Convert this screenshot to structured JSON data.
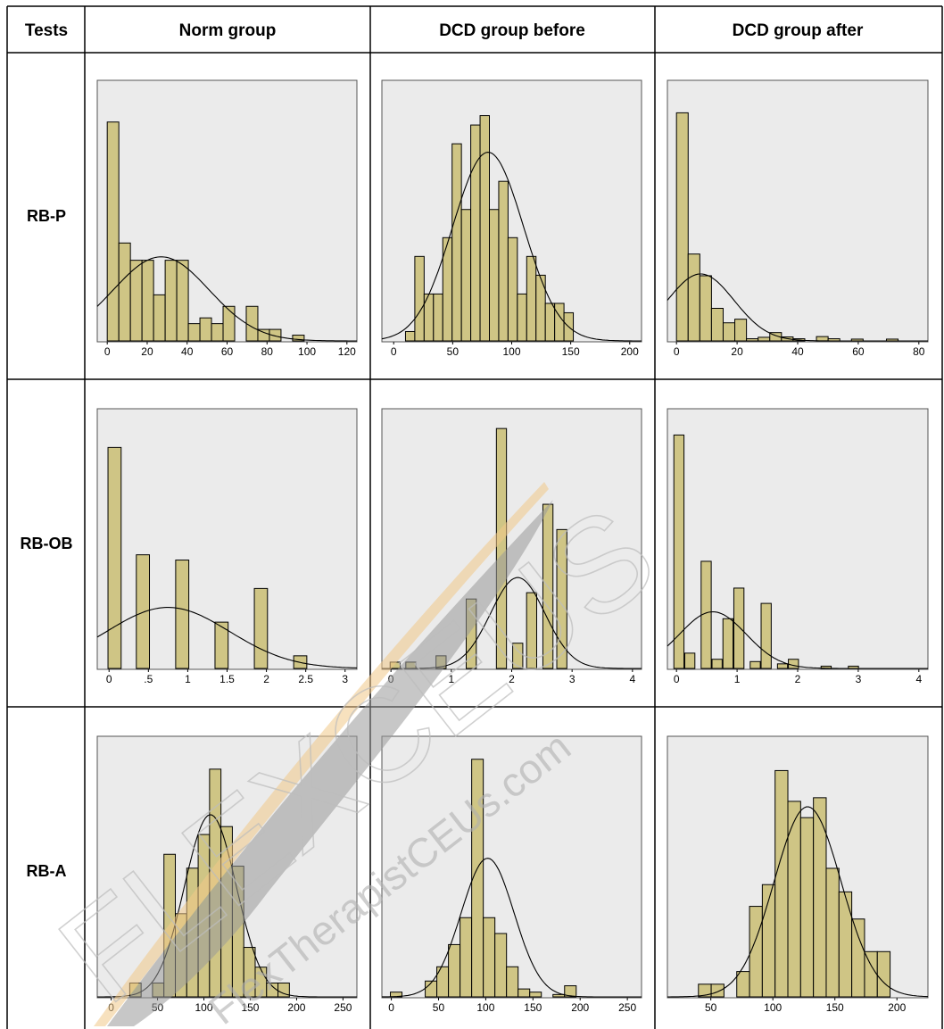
{
  "table": {
    "header_tests": "Tests",
    "columns": [
      "Norm group",
      "DCD group before",
      "DCD group after"
    ],
    "rows": [
      "RB-P",
      "RB-OB",
      "RB-A"
    ]
  },
  "watermark": {
    "big": "FLEXCEUS",
    "small": "FlexTherapistCEUs.com"
  },
  "chart_data": [
    {
      "type": "bar",
      "row": "RB-P",
      "column": "Norm group",
      "xlim": [
        -5,
        125
      ],
      "ticks": [
        0,
        20,
        40,
        60,
        80,
        100,
        120
      ],
      "tick_labels": [
        "0",
        "20",
        "40",
        "60",
        "80",
        "100",
        "120"
      ],
      "bin_start": 0,
      "bin_width": 5.8,
      "values": [
        38,
        17,
        14,
        14,
        8,
        14,
        14,
        3,
        4,
        3,
        6,
        0,
        6,
        2,
        2,
        0,
        1
      ],
      "curve": {
        "mean": 27,
        "sd": 24,
        "peak": 14.6
      },
      "ymax": 44
    },
    {
      "type": "bar",
      "row": "RB-P",
      "column": "DCD group before",
      "xlim": [
        -10,
        210
      ],
      "ticks": [
        0,
        50,
        100,
        150,
        200
      ],
      "tick_labels": [
        "0",
        "50",
        "100",
        "150",
        "200"
      ],
      "bin_start": 10,
      "bin_width": 7.9,
      "values": [
        1,
        9,
        5,
        5,
        11,
        21,
        14,
        23,
        24,
        14,
        17,
        11,
        5,
        9,
        7,
        4,
        4,
        3
      ],
      "curve": {
        "mean": 80,
        "sd": 30,
        "peak": 20.1
      },
      "ymax": 27
    },
    {
      "type": "bar",
      "row": "RB-P",
      "column": "DCD group after",
      "xlim": [
        -3,
        83
      ],
      "ticks": [
        0,
        20,
        40,
        60,
        80
      ],
      "tick_labels": [
        "0",
        "20",
        "40",
        "60",
        "80"
      ],
      "bin_start": 0,
      "bin_width": 3.85,
      "values": [
        63,
        24,
        18,
        9,
        5,
        6,
        0.6,
        1,
        2.3,
        1.1,
        0.6,
        0,
        1.2,
        0.6,
        0,
        0.5,
        0,
        0,
        0.5
      ],
      "curve": {
        "mean": 8,
        "sd": 11,
        "peak": 18.5
      },
      "ymax": 70
    },
    {
      "type": "bar",
      "row": "RB-OB",
      "column": "Norm group",
      "xlim": [
        -0.15,
        3.15
      ],
      "ticks": [
        0,
        0.5,
        1,
        1.5,
        2,
        2.5,
        3
      ],
      "tick_labels": [
        "0",
        ".5",
        "1",
        "1.5",
        "2",
        "2.5",
        "3"
      ],
      "bin_start": 0,
      "bin_width": 0.167,
      "centers": [
        0.07,
        0.43,
        0.93,
        1.43,
        1.93,
        2.43
      ],
      "values": [
        21,
        10.8,
        10.3,
        4.4,
        7.6,
        1.2
      ],
      "curve": {
        "mean": 0.75,
        "sd": 0.78,
        "peak": 5.8
      },
      "ymax": 24
    },
    {
      "type": "bar",
      "row": "RB-OB",
      "column": "DCD group before",
      "xlim": [
        -0.15,
        4.15
      ],
      "ticks": [
        0,
        1,
        2,
        3,
        4
      ],
      "tick_labels": [
        "0",
        "1",
        "2",
        "3",
        "4"
      ],
      "bin_start": 0,
      "bin_width": 0.167,
      "centers": [
        0.07,
        0.33,
        0.83,
        1.33,
        1.83,
        2.1,
        2.33,
        2.6,
        2.83
      ],
      "values": [
        1,
        1,
        2,
        11,
        38,
        4,
        12,
        26,
        22
      ],
      "curve": {
        "mean": 2.1,
        "sd": 0.45,
        "peak": 14.4
      },
      "ymax": 40
    },
    {
      "type": "bar",
      "row": "RB-OB",
      "column": "DCD group after",
      "xlim": [
        -0.15,
        4.15
      ],
      "ticks": [
        0,
        1,
        2,
        3,
        4
      ],
      "tick_labels": [
        "0",
        "1",
        "2",
        "3",
        "4"
      ],
      "bin_start": 0,
      "bin_width": 0.167,
      "centers": [
        0.04,
        0.22,
        0.49,
        0.67,
        0.85,
        1.03,
        1.3,
        1.48,
        1.75,
        1.93,
        2.47,
        2.92
      ],
      "values": [
        61,
        4,
        28,
        2.4,
        13,
        21,
        1.8,
        17,
        1.2,
        2.4,
        0.6,
        0.6
      ],
      "curve": {
        "mean": 0.6,
        "sd": 0.55,
        "peak": 14.8
      },
      "ymax": 66
    },
    {
      "type": "bar",
      "row": "RB-A",
      "column": "Norm group",
      "xlim": [
        -15,
        265
      ],
      "ticks": [
        0,
        50,
        100,
        150,
        200,
        250
      ],
      "tick_labels": [
        "0",
        "50",
        "100",
        "150",
        "200",
        "250"
      ],
      "bin_start": 20,
      "bin_width": 12.3,
      "values": [
        0.7,
        0,
        0.7,
        7.2,
        4.2,
        6.5,
        8.2,
        11.5,
        8.6,
        6.6,
        2.5,
        1.5,
        0.7,
        0.7
      ],
      "curve": {
        "mean": 107,
        "sd": 28,
        "peak": 9.2
      },
      "ymax": 12.8
    },
    {
      "type": "bar",
      "row": "RB-A",
      "column": "DCD group before",
      "xlim": [
        -10,
        265
      ],
      "ticks": [
        0,
        50,
        100,
        150,
        200,
        250
      ],
      "tick_labels": [
        "0",
        "50",
        "100",
        "150",
        "200",
        "250"
      ],
      "bin_start": -1,
      "bin_width": 12.3,
      "values": [
        0.6,
        0,
        0,
        2,
        3.8,
        6.6,
        10,
        30,
        10,
        8,
        3.8,
        1,
        0.6,
        0,
        0.3,
        1.4
      ],
      "curve": {
        "mean": 102,
        "sd": 28,
        "peak": 17.5
      },
      "ymax": 32
    },
    {
      "type": "bar",
      "row": "RB-A",
      "column": "DCD group after",
      "xlim": [
        15,
        225
      ],
      "ticks": [
        50,
        100,
        150,
        200
      ],
      "tick_labels": [
        "50",
        "100",
        "150",
        "200"
      ],
      "bin_start": 40,
      "bin_width": 10.3,
      "values": [
        0.7,
        0.7,
        0,
        1.4,
        5,
        6.2,
        12.5,
        10.8,
        9.9,
        11,
        7.1,
        5.8,
        4.3,
        2.5,
        2.5
      ],
      "curve": {
        "mean": 128,
        "sd": 27,
        "peak": 10.5
      },
      "ymax": 14
    }
  ]
}
